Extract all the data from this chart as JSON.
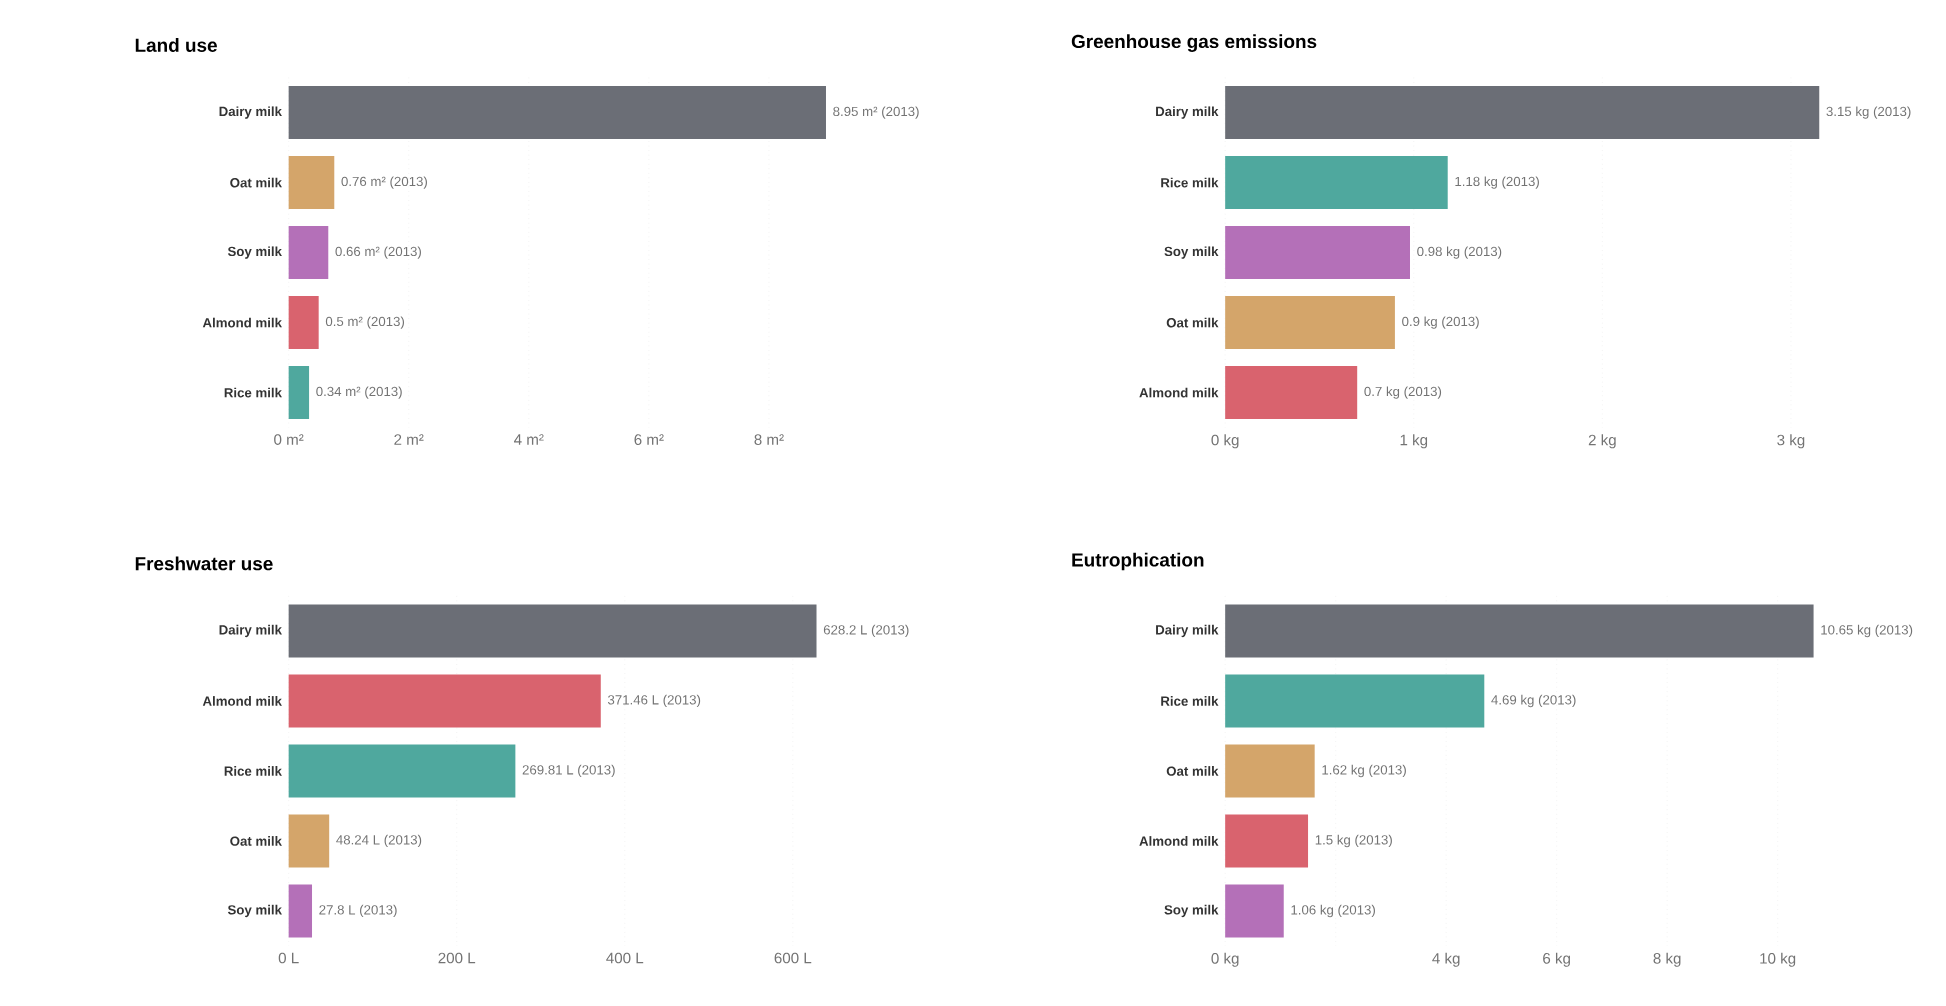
{
  "chart_data": [
    {
      "type": "bar",
      "orientation": "horizontal",
      "title": "Land use",
      "categories": [
        "Dairy milk",
        "Oat milk",
        "Soy milk",
        "Almond milk",
        "Rice milk"
      ],
      "values": [
        8.95,
        0.76,
        0.66,
        0.5,
        0.34
      ],
      "colors": [
        "#6b6e76",
        "#d4a56a",
        "#b470b8",
        "#d9636e",
        "#4fa89e"
      ],
      "value_labels": [
        "8.95 m² (2013)",
        "0.76 m² (2013)",
        "0.66 m² (2013)",
        "0.5 m² (2013)",
        "0.34 m² (2013)"
      ],
      "xlim": [
        0,
        8.95
      ],
      "xticks": [
        {
          "value": 0,
          "label": "0 m²"
        },
        {
          "value": 2,
          "label": "2 m²"
        },
        {
          "value": 4,
          "label": "4 m²"
        },
        {
          "value": 6,
          "label": "6 m²"
        },
        {
          "value": 8,
          "label": "8 m²"
        }
      ],
      "grid": "x"
    },
    {
      "type": "bar",
      "orientation": "horizontal",
      "title": "Greenhouse gas emissions",
      "categories": [
        "Dairy milk",
        "Rice milk",
        "Soy milk",
        "Oat milk",
        "Almond milk"
      ],
      "values": [
        3.15,
        1.18,
        0.98,
        0.9,
        0.7
      ],
      "colors": [
        "#6b6e76",
        "#4fa89e",
        "#b470b8",
        "#d4a56a",
        "#d9636e"
      ],
      "value_labels": [
        "3.15 kg (2013)",
        "1.18 kg (2013)",
        "0.98 kg (2013)",
        "0.9 kg (2013)",
        "0.7 kg (2013)"
      ],
      "xlim": [
        0,
        3.15
      ],
      "xticks": [
        {
          "value": 0,
          "label": "0 kg"
        },
        {
          "value": 1,
          "label": "1 kg"
        },
        {
          "value": 2,
          "label": "2 kg"
        },
        {
          "value": 3,
          "label": "3 kg"
        }
      ],
      "grid": "x"
    },
    {
      "type": "bar",
      "orientation": "horizontal",
      "title": "Freshwater use",
      "categories": [
        "Dairy milk",
        "Almond milk",
        "Rice milk",
        "Oat milk",
        "Soy milk"
      ],
      "values": [
        628.2,
        371.46,
        269.81,
        48.24,
        27.8
      ],
      "colors": [
        "#6b6e76",
        "#d9636e",
        "#4fa89e",
        "#d4a56a",
        "#b470b8"
      ],
      "value_labels": [
        "628.2 L (2013)",
        "371.46 L (2013)",
        "269.81 L (2013)",
        "48.24 L (2013)",
        "27.8 L (2013)"
      ],
      "xlim": [
        0,
        628.2
      ],
      "xticks": [
        {
          "value": 0,
          "label": "0 L"
        },
        {
          "value": 200,
          "label": "200 L"
        },
        {
          "value": 400,
          "label": "400 L"
        },
        {
          "value": 600,
          "label": "600 L"
        }
      ],
      "grid": "x"
    },
    {
      "type": "bar",
      "orientation": "horizontal",
      "title": "Eutrophication",
      "categories": [
        "Dairy milk",
        "Rice milk",
        "Oat milk",
        "Almond milk",
        "Soy milk"
      ],
      "values": [
        10.65,
        4.69,
        1.62,
        1.5,
        1.06
      ],
      "colors": [
        "#6b6e76",
        "#4fa89e",
        "#d4a56a",
        "#d9636e",
        "#b470b8"
      ],
      "value_labels": [
        "10.65 kg (2013)",
        "4.69 kg (2013)",
        "1.62 kg (2013)",
        "1.5 kg (2013)",
        "1.06 kg (2013)"
      ],
      "xlim": [
        0,
        10.65
      ],
      "xticks": [
        {
          "value": 0,
          "label": "0 kg"
        },
        {
          "value": 2,
          "label": null
        },
        {
          "value": 4,
          "label": "4 kg"
        },
        {
          "value": 6,
          "label": "6 kg"
        },
        {
          "value": 8,
          "label": "8 kg"
        },
        {
          "value": 10,
          "label": "10 kg"
        }
      ],
      "grid": "x"
    }
  ]
}
